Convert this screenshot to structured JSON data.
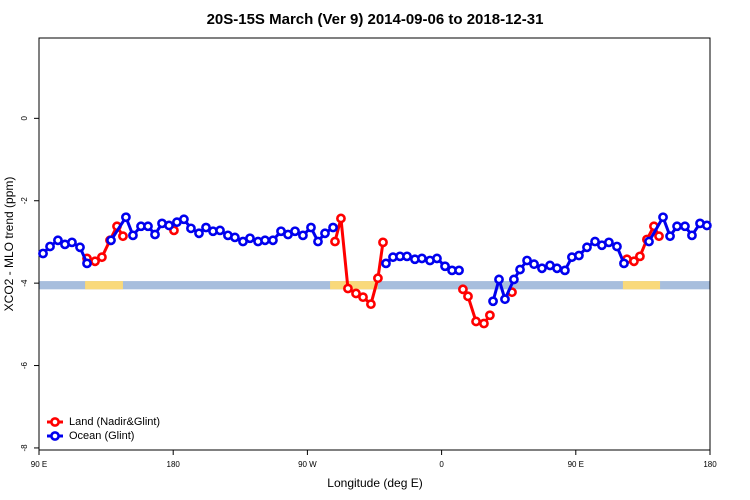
{
  "chart_data": {
    "type": "line",
    "title": "20S-15S March (Ver 9)   2014-09-06 to 2018-12-31",
    "x_label": "Longitude (deg E)",
    "y_label": "XCO2 - MLO trend (ppm)",
    "xlim": [
      90,
      540
    ],
    "ylim": [
      -8.05,
      1.95
    ],
    "xticks": [
      {
        "value": 90,
        "label": "90 E"
      },
      180,
      {
        "value": 270,
        "label": "90 W"
      },
      {
        "value": 360,
        "label": "0"
      },
      {
        "value": 450,
        "label": "90 E"
      },
      {
        "value": 540,
        "label": "180"
      }
    ],
    "yticks": [
      0,
      -2,
      -4,
      -6,
      -8
    ],
    "legend": "bottom-left",
    "surface_band": {
      "ylim": [
        -4.15,
        -3.95
      ],
      "ocean_color": "#a7bedd",
      "land_color": "#f9d97a",
      "land_regions": [
        [
          120.9,
          146.3
        ],
        [
          285.2,
          317.3
        ],
        [
          481.6,
          506.5
        ]
      ]
    },
    "series": [
      {
        "name": "Land (Nadir&Glint)",
        "color": "#ff0000",
        "x": [
          122.2,
          127.6,
          132.2,
          137.6,
          142.3,
          146.3,
          null,
          180.5,
          null,
          288.5,
          292.5,
          297.2,
          302.6,
          307.3,
          312.6,
          317.3,
          320.7,
          null,
          374.3,
          377.7,
          383.1,
          388.4,
          392.4,
          null,
          407.2,
          null,
          484.3,
          489.0,
          493.0,
          497.7,
          502.4,
          505.8
        ],
        "values": [
          -3.4,
          -3.47,
          -3.37,
          -2.96,
          -2.62,
          -2.86,
          null,
          -2.72,
          null,
          -2.99,
          -2.43,
          -4.13,
          -4.25,
          -4.34,
          -4.51,
          -3.88,
          -3.01,
          null,
          -4.15,
          -4.32,
          -4.93,
          -4.98,
          -4.78,
          null,
          -4.22,
          null,
          -3.42,
          -3.47,
          -3.35,
          -2.94,
          -2.62,
          -2.86
        ]
      },
      {
        "name": "Ocean (Glint)",
        "color": "#0000ee",
        "x": [
          92.7,
          97.4,
          102.7,
          107.4,
          112.1,
          117.5,
          122.2,
          null,
          138.3,
          148.3,
          153.0,
          158.4,
          163.1,
          167.8,
          172.5,
          177.2,
          182.5,
          187.2,
          191.9,
          197.3,
          202.0,
          206.7,
          211.4,
          216.7,
          221.4,
          226.8,
          231.5,
          236.9,
          241.6,
          246.9,
          252.3,
          257.0,
          261.7,
          267.0,
          272.4,
          277.1,
          281.8,
          287.2,
          null,
          322.7,
          327.4,
          332.1,
          336.8,
          342.1,
          346.8,
          352.2,
          356.9,
          362.3,
          367.0,
          371.7,
          null,
          394.5,
          398.5,
          402.5,
          408.5,
          412.6,
          417.3,
          422.0,
          427.3,
          432.7,
          437.4,
          442.7,
          447.4,
          452.1,
          457.5,
          462.9,
          467.5,
          472.2,
          477.6,
          482.3,
          null,
          499.1,
          508.5,
          513.2,
          517.9,
          523.2,
          527.9,
          533.3,
          537.9
        ],
        "values": [
          -3.28,
          -3.11,
          -2.96,
          -3.06,
          -3.01,
          -3.13,
          -3.52,
          null,
          -2.96,
          -2.4,
          -2.84,
          -2.62,
          -2.62,
          -2.82,
          -2.55,
          -2.6,
          -2.52,
          -2.45,
          -2.67,
          -2.79,
          -2.65,
          -2.74,
          -2.72,
          -2.84,
          -2.89,
          -2.99,
          -2.91,
          -2.99,
          -2.96,
          -2.96,
          -2.74,
          -2.82,
          -2.74,
          -2.84,
          -2.65,
          -2.99,
          -2.79,
          -2.65,
          null,
          -3.52,
          -3.37,
          -3.35,
          -3.35,
          -3.42,
          -3.4,
          -3.45,
          -3.4,
          -3.59,
          -3.69,
          -3.69,
          null,
          -4.44,
          -3.91,
          -4.39,
          -3.91,
          -3.67,
          -3.45,
          -3.54,
          -3.64,
          -3.57,
          -3.64,
          -3.69,
          -3.37,
          -3.33,
          -3.13,
          -2.99,
          -3.08,
          -3.01,
          -3.11,
          -3.52,
          null,
          -2.99,
          -2.4,
          -2.86,
          -2.62,
          -2.62,
          -2.84,
          -2.55,
          -2.6
        ]
      }
    ]
  }
}
